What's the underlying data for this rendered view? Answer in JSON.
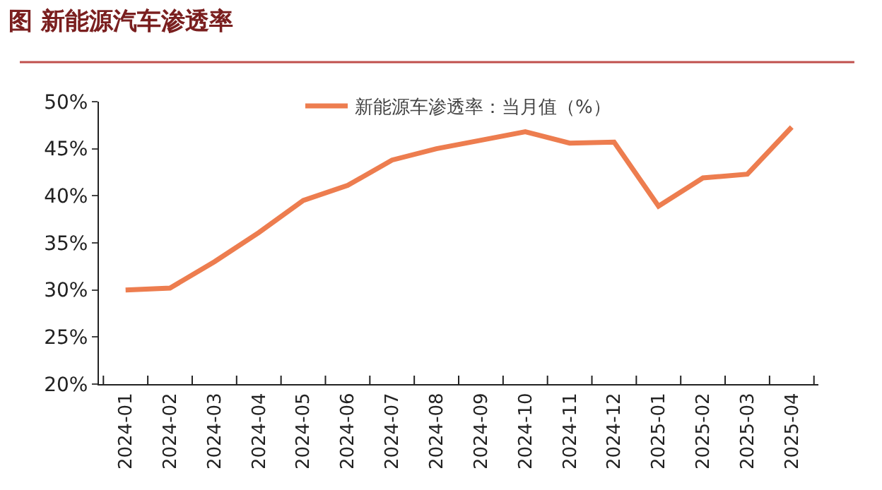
{
  "chart_data": {
    "type": "line",
    "title": "图 新能源汽车渗透率",
    "categories": [
      "2024-01",
      "2024-02",
      "2024-03",
      "2024-04",
      "2024-05",
      "2024-06",
      "2024-07",
      "2024-08",
      "2024-09",
      "2024-10",
      "2024-11",
      "2024-12",
      "2025-01",
      "2025-02",
      "2025-03",
      "2025-04"
    ],
    "series": [
      {
        "name": "新能源车渗透率：当月值（%）",
        "color": "#ed7d4f",
        "values": [
          30.0,
          30.2,
          33.0,
          36.1,
          39.5,
          41.1,
          43.8,
          45.0,
          45.9,
          46.8,
          45.6,
          45.7,
          38.9,
          41.9,
          42.3,
          47.3
        ]
      }
    ],
    "ylim": [
      20,
      50
    ],
    "yticks": [
      {
        "value": 20,
        "label": "20%"
      },
      {
        "value": 25,
        "label": "25%"
      },
      {
        "value": 30,
        "label": "30%"
      },
      {
        "value": 35,
        "label": "35%"
      },
      {
        "value": 40,
        "label": "40%"
      },
      {
        "value": 45,
        "label": "45%"
      },
      {
        "value": 50,
        "label": "50%"
      }
    ],
    "legend": "top",
    "marker": "none",
    "line_style": "solid"
  }
}
